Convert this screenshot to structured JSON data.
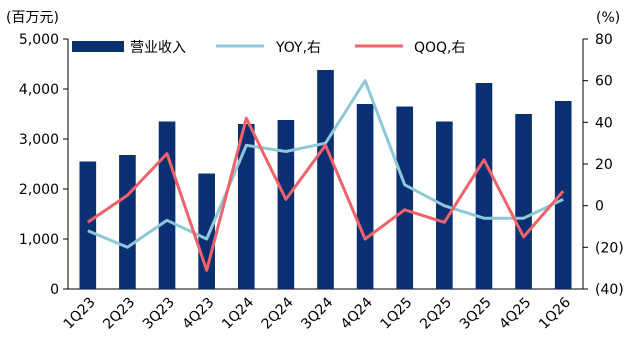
{
  "chart_data": {
    "type": "bar",
    "left_unit": "(百万元)",
    "right_unit": "(%)",
    "categories": [
      "1Q23",
      "2Q23",
      "3Q23",
      "4Q23",
      "1Q24",
      "2Q24",
      "3Q24",
      "4Q24",
      "1Q25",
      "2Q25",
      "3Q25",
      "4Q25",
      "1Q26"
    ],
    "left_ylim": [
      0,
      5000
    ],
    "left_ticks": [
      "0",
      "1,000",
      "2,000",
      "3,000",
      "4,000",
      "5,000"
    ],
    "right_ylim": [
      -40,
      80
    ],
    "right_ticks": [
      "(40)",
      "(20)",
      "0",
      "20",
      "40",
      "60",
      "80"
    ],
    "grid": false,
    "legend_position": "top",
    "series": [
      {
        "name": "营业收入",
        "type": "bar",
        "axis": "left",
        "color": "#0b2f73",
        "values": [
          2550,
          2680,
          3350,
          2310,
          3300,
          3380,
          4380,
          3700,
          3650,
          3350,
          4120,
          3500,
          3760
        ]
      },
      {
        "name": "YOY,右",
        "type": "line",
        "axis": "right",
        "color": "#8fc9d9",
        "values": [
          -12,
          -20,
          -7,
          -16,
          29,
          26,
          30,
          60,
          10,
          0,
          -6,
          -6,
          3
        ]
      },
      {
        "name": "QOQ,右",
        "type": "line",
        "axis": "right",
        "color": "#f0636a",
        "values": [
          -8,
          5,
          25,
          -31,
          42,
          3,
          29,
          -16,
          -2,
          -8,
          22,
          -15,
          7
        ]
      }
    ]
  }
}
